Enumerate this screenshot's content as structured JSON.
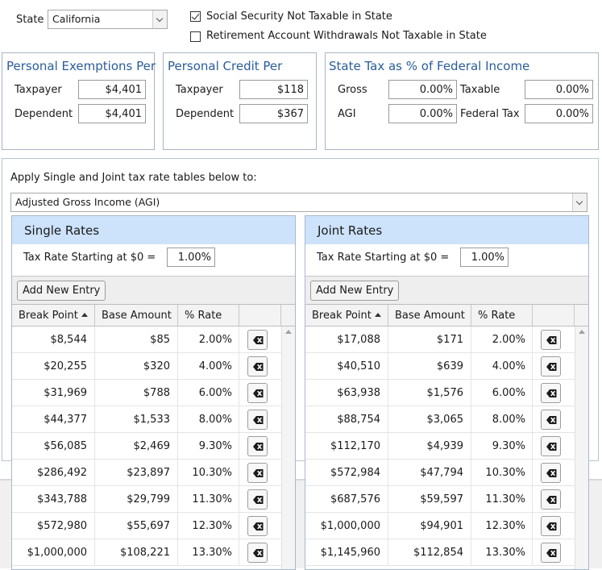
{
  "top": {
    "state_label": "State",
    "state_value": "California",
    "ss_not_taxable_label": "Social Security Not Taxable in State",
    "ss_not_taxable_checked": true,
    "retirement_label": "Retirement Account Withdrawals Not Taxable in State",
    "retirement_checked": false
  },
  "exemptions": {
    "title": "Personal Exemptions Per",
    "taxpayer_label": "Taxpayer",
    "taxpayer_value": "$4,401",
    "dependent_label": "Dependent",
    "dependent_value": "$4,401"
  },
  "credit": {
    "title": "Personal Credit Per",
    "taxpayer_label": "Taxpayer",
    "taxpayer_value": "$118",
    "dependent_label": "Dependent",
    "dependent_value": "$367"
  },
  "state_tax": {
    "title": "State Tax as % of Federal Income",
    "gross_label": "Gross",
    "gross_value": "0.00%",
    "taxable_label": "Taxable",
    "taxable_value": "0.00%",
    "agi_label": "AGI",
    "agi_value": "0.00%",
    "federal_tax_label": "Federal Tax",
    "federal_tax_value": "0.00%"
  },
  "apply": {
    "label": "Apply Single and Joint tax rate tables below to:",
    "selected": "Adjusted Gross Income (AGI)"
  },
  "columns": {
    "break_point": "Break Point",
    "base_amount": "Base Amount",
    "rate": "% Rate"
  },
  "single": {
    "title": "Single Rates",
    "start_label": "Tax Rate Starting at $0 =",
    "start_value": "1.00%",
    "add_label": "Add New Entry",
    "rows": [
      {
        "bp": "$8,544",
        "base": "$85",
        "rate": "2.00%"
      },
      {
        "bp": "$20,255",
        "base": "$320",
        "rate": "4.00%"
      },
      {
        "bp": "$31,969",
        "base": "$788",
        "rate": "6.00%"
      },
      {
        "bp": "$44,377",
        "base": "$1,533",
        "rate": "8.00%"
      },
      {
        "bp": "$56,085",
        "base": "$2,469",
        "rate": "9.30%"
      },
      {
        "bp": "$286,492",
        "base": "$23,897",
        "rate": "10.30%"
      },
      {
        "bp": "$343,788",
        "base": "$29,799",
        "rate": "11.30%"
      },
      {
        "bp": "$572,980",
        "base": "$55,697",
        "rate": "12.30%"
      },
      {
        "bp": "$1,000,000",
        "base": "$108,221",
        "rate": "13.30%"
      }
    ]
  },
  "joint": {
    "title": "Joint Rates",
    "start_label": "Tax Rate Starting at $0 =",
    "start_value": "1.00%",
    "add_label": "Add New Entry",
    "rows": [
      {
        "bp": "$17,088",
        "base": "$171",
        "rate": "2.00%"
      },
      {
        "bp": "$40,510",
        "base": "$639",
        "rate": "4.00%"
      },
      {
        "bp": "$63,938",
        "base": "$1,576",
        "rate": "6.00%"
      },
      {
        "bp": "$88,754",
        "base": "$3,065",
        "rate": "8.00%"
      },
      {
        "bp": "$112,170",
        "base": "$4,939",
        "rate": "9.30%"
      },
      {
        "bp": "$572,984",
        "base": "$47,794",
        "rate": "10.30%"
      },
      {
        "bp": "$687,576",
        "base": "$59,597",
        "rate": "11.30%"
      },
      {
        "bp": "$1,000,000",
        "base": "$94,901",
        "rate": "12.30%"
      },
      {
        "bp": "$1,145,960",
        "base": "$112,854",
        "rate": "13.30%"
      }
    ]
  },
  "icons": {
    "delete": "delete-backspace-icon",
    "dropdown": "chevron-down-icon",
    "sort": "sort-ascending-icon",
    "checkbox": "checkmark-icon"
  },
  "colors": {
    "group_title": "#2a5d9a",
    "panel_header": "#cde2fb",
    "border": "#a8b4c4"
  }
}
